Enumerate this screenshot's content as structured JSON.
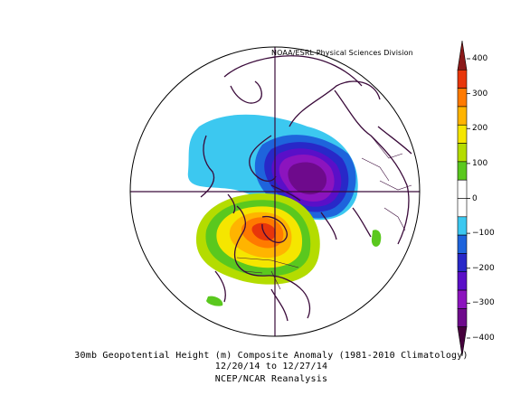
{
  "credit": "NOAA/ESRL Physical Sciences Division",
  "caption": {
    "line1": "30mb Geopotential Height (m) Composite Anomaly (1981-2010 Climatology)",
    "line2": "12/20/14  to 12/27/14",
    "line3": "NCEP/NCAR Reanalysis"
  },
  "colorbar": {
    "ticks": [
      "400",
      "300",
      "200",
      "100",
      "0",
      "−100",
      "−200",
      "−300",
      "−400"
    ],
    "colors": [
      "#8b1a1a",
      "#e8360a",
      "#ff7a00",
      "#ffb400",
      "#f5e600",
      "#b4dc00",
      "#5ac81e",
      "#ffffff",
      "#ffffff",
      "#3cc8f0",
      "#1e64dc",
      "#2828c8",
      "#5a0fc8",
      "#8c14be",
      "#6e0a8c",
      "#46003c"
    ]
  }
}
